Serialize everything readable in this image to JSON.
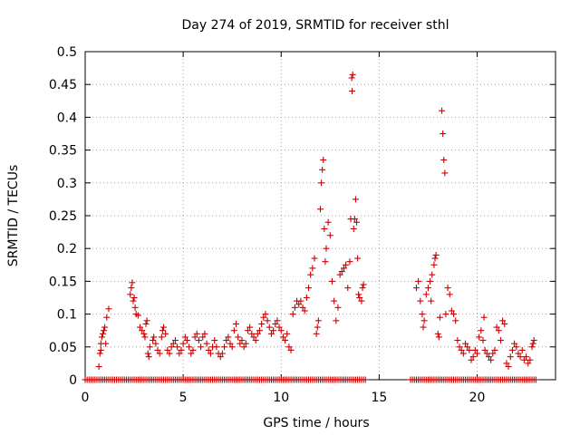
{
  "chart_data": {
    "type": "scatter",
    "title": "Day 274 of 2019, SRMTID for receiver sthl",
    "xlabel": "GPS time / hours",
    "ylabel": "SRMTID / TECUs",
    "xlim": [
      0,
      24
    ],
    "ylim": [
      0,
      0.5
    ],
    "xticks": [
      0,
      5,
      10,
      15,
      20
    ],
    "xtick_labels": [
      "0",
      "5",
      "10",
      "15",
      "20"
    ],
    "yticks": [
      0,
      0.05,
      0.1,
      0.15,
      0.2,
      0.25,
      0.3,
      0.35,
      0.4,
      0.45,
      0.5
    ],
    "ytick_labels": [
      "0",
      "0.05",
      "0.1",
      "0.15",
      "0.2",
      "0.25",
      "0.3",
      "0.35",
      "0.4",
      "0.45",
      "0.5"
    ],
    "grid": true,
    "marker": "+",
    "color": "#cc0000",
    "series": [
      {
        "name": "SRMTID",
        "points": [
          [
            0.7,
            0.02
          ],
          [
            0.75,
            0.04
          ],
          [
            0.8,
            0.055
          ],
          [
            0.85,
            0.065
          ],
          [
            0.9,
            0.07
          ],
          [
            0.95,
            0.075
          ],
          [
            1.0,
            0.08
          ],
          [
            1.1,
            0.095
          ],
          [
            1.2,
            0.108
          ],
          [
            1.05,
            0.055
          ],
          [
            0.8,
            0.045
          ],
          [
            2.3,
            0.13
          ],
          [
            2.35,
            0.14
          ],
          [
            2.4,
            0.148
          ],
          [
            2.45,
            0.12
          ],
          [
            2.5,
            0.125
          ],
          [
            2.55,
            0.11
          ],
          [
            2.6,
            0.1
          ],
          [
            2.7,
            0.098
          ],
          [
            2.8,
            0.08
          ],
          [
            2.9,
            0.075
          ],
          [
            3.0,
            0.07
          ],
          [
            3.05,
            0.065
          ],
          [
            3.1,
            0.085
          ],
          [
            3.15,
            0.09
          ],
          [
            3.2,
            0.04
          ],
          [
            3.25,
            0.035
          ],
          [
            3.3,
            0.05
          ],
          [
            3.45,
            0.06
          ],
          [
            3.5,
            0.065
          ],
          [
            3.6,
            0.055
          ],
          [
            3.7,
            0.045
          ],
          [
            3.8,
            0.04
          ],
          [
            3.9,
            0.065
          ],
          [
            3.95,
            0.075
          ],
          [
            4.0,
            0.08
          ],
          [
            4.1,
            0.07
          ],
          [
            4.2,
            0.045
          ],
          [
            4.3,
            0.04
          ],
          [
            4.4,
            0.05
          ],
          [
            4.5,
            0.055
          ],
          [
            4.6,
            0.06
          ],
          [
            4.7,
            0.05
          ],
          [
            4.8,
            0.04
          ],
          [
            4.9,
            0.045
          ],
          [
            5.0,
            0.055
          ],
          [
            5.1,
            0.065
          ],
          [
            5.2,
            0.06
          ],
          [
            5.3,
            0.05
          ],
          [
            5.4,
            0.04
          ],
          [
            5.5,
            0.045
          ],
          [
            5.6,
            0.065
          ],
          [
            5.7,
            0.07
          ],
          [
            5.8,
            0.06
          ],
          [
            5.9,
            0.05
          ],
          [
            6.0,
            0.065
          ],
          [
            6.1,
            0.07
          ],
          [
            6.2,
            0.055
          ],
          [
            6.3,
            0.045
          ],
          [
            6.4,
            0.04
          ],
          [
            6.5,
            0.05
          ],
          [
            6.6,
            0.06
          ],
          [
            6.7,
            0.05
          ],
          [
            6.8,
            0.04
          ],
          [
            6.9,
            0.035
          ],
          [
            7.0,
            0.04
          ],
          [
            7.1,
            0.05
          ],
          [
            7.2,
            0.06
          ],
          [
            7.3,
            0.065
          ],
          [
            7.4,
            0.055
          ],
          [
            7.5,
            0.05
          ],
          [
            7.6,
            0.075
          ],
          [
            7.7,
            0.085
          ],
          [
            7.8,
            0.065
          ],
          [
            7.9,
            0.055
          ],
          [
            8.0,
            0.06
          ],
          [
            8.1,
            0.05
          ],
          [
            8.2,
            0.055
          ],
          [
            8.3,
            0.075
          ],
          [
            8.4,
            0.08
          ],
          [
            8.5,
            0.07
          ],
          [
            8.6,
            0.065
          ],
          [
            8.7,
            0.06
          ],
          [
            8.8,
            0.07
          ],
          [
            8.9,
            0.075
          ],
          [
            9.0,
            0.085
          ],
          [
            9.1,
            0.095
          ],
          [
            9.2,
            0.1
          ],
          [
            9.3,
            0.09
          ],
          [
            9.4,
            0.08
          ],
          [
            9.5,
            0.07
          ],
          [
            9.6,
            0.075
          ],
          [
            9.7,
            0.085
          ],
          [
            9.8,
            0.09
          ],
          [
            9.9,
            0.08
          ],
          [
            10.0,
            0.075
          ],
          [
            10.1,
            0.065
          ],
          [
            10.2,
            0.06
          ],
          [
            10.3,
            0.07
          ],
          [
            10.4,
            0.05
          ],
          [
            10.5,
            0.045
          ],
          [
            10.6,
            0.1
          ],
          [
            10.7,
            0.11
          ],
          [
            10.8,
            0.12
          ],
          [
            10.9,
            0.115
          ],
          [
            11.0,
            0.12
          ],
          [
            11.1,
            0.11
          ],
          [
            11.2,
            0.105
          ],
          [
            11.3,
            0.125
          ],
          [
            11.4,
            0.14
          ],
          [
            11.5,
            0.16
          ],
          [
            11.6,
            0.17
          ],
          [
            11.7,
            0.185
          ],
          [
            11.8,
            0.07
          ],
          [
            11.85,
            0.08
          ],
          [
            11.9,
            0.09
          ],
          [
            12.0,
            0.26
          ],
          [
            12.05,
            0.3
          ],
          [
            12.1,
            0.32
          ],
          [
            12.15,
            0.335
          ],
          [
            12.2,
            0.23
          ],
          [
            12.25,
            0.18
          ],
          [
            12.3,
            0.2
          ],
          [
            12.4,
            0.24
          ],
          [
            12.5,
            0.22
          ],
          [
            12.6,
            0.15
          ],
          [
            12.7,
            0.12
          ],
          [
            12.8,
            0.09
          ],
          [
            12.9,
            0.11
          ],
          [
            13.0,
            0.16
          ],
          [
            13.1,
            0.165
          ],
          [
            13.2,
            0.17
          ],
          [
            13.3,
            0.175
          ],
          [
            13.4,
            0.14
          ],
          [
            13.5,
            0.18
          ],
          [
            13.55,
            0.245
          ],
          [
            13.6,
            0.46
          ],
          [
            13.62,
            0.44
          ],
          [
            13.65,
            0.465
          ],
          [
            13.7,
            0.23
          ],
          [
            13.75,
            0.245
          ],
          [
            13.8,
            0.275
          ],
          [
            13.85,
            0.24
          ],
          [
            13.9,
            0.185
          ],
          [
            13.95,
            0.13
          ],
          [
            14.0,
            0.125
          ],
          [
            14.1,
            0.12
          ],
          [
            14.15,
            0.14
          ],
          [
            14.2,
            0.145
          ],
          [
            16.9,
            0.14
          ],
          [
            17.0,
            0.15
          ],
          [
            17.1,
            0.12
          ],
          [
            17.2,
            0.1
          ],
          [
            17.25,
            0.08
          ],
          [
            17.3,
            0.09
          ],
          [
            17.4,
            0.13
          ],
          [
            17.5,
            0.14
          ],
          [
            17.6,
            0.15
          ],
          [
            17.65,
            0.12
          ],
          [
            17.7,
            0.16
          ],
          [
            17.8,
            0.175
          ],
          [
            17.85,
            0.185
          ],
          [
            17.9,
            0.19
          ],
          [
            18.0,
            0.07
          ],
          [
            18.05,
            0.065
          ],
          [
            18.1,
            0.095
          ],
          [
            18.2,
            0.41
          ],
          [
            18.25,
            0.375
          ],
          [
            18.3,
            0.335
          ],
          [
            18.35,
            0.315
          ],
          [
            18.4,
            0.1
          ],
          [
            18.5,
            0.14
          ],
          [
            18.6,
            0.13
          ],
          [
            18.7,
            0.105
          ],
          [
            18.8,
            0.1
          ],
          [
            18.9,
            0.09
          ],
          [
            19.0,
            0.06
          ],
          [
            19.1,
            0.05
          ],
          [
            19.2,
            0.045
          ],
          [
            19.3,
            0.04
          ],
          [
            19.4,
            0.055
          ],
          [
            19.5,
            0.05
          ],
          [
            19.6,
            0.045
          ],
          [
            19.7,
            0.03
          ],
          [
            19.8,
            0.035
          ],
          [
            19.9,
            0.045
          ],
          [
            20.0,
            0.04
          ],
          [
            20.1,
            0.065
          ],
          [
            20.2,
            0.075
          ],
          [
            20.3,
            0.06
          ],
          [
            20.35,
            0.095
          ],
          [
            20.4,
            0.045
          ],
          [
            20.5,
            0.04
          ],
          [
            20.6,
            0.035
          ],
          [
            20.7,
            0.03
          ],
          [
            20.8,
            0.04
          ],
          [
            20.9,
            0.045
          ],
          [
            21.0,
            0.08
          ],
          [
            21.1,
            0.075
          ],
          [
            21.2,
            0.06
          ],
          [
            21.3,
            0.09
          ],
          [
            21.4,
            0.085
          ],
          [
            21.5,
            0.025
          ],
          [
            21.6,
            0.02
          ],
          [
            21.7,
            0.035
          ],
          [
            21.8,
            0.045
          ],
          [
            21.9,
            0.055
          ],
          [
            22.0,
            0.05
          ],
          [
            22.1,
            0.04
          ],
          [
            22.2,
            0.035
          ],
          [
            22.3,
            0.045
          ],
          [
            22.4,
            0.03
          ],
          [
            22.5,
            0.035
          ],
          [
            22.6,
            0.025
          ],
          [
            22.7,
            0.03
          ],
          [
            22.8,
            0.05
          ],
          [
            22.85,
            0.055
          ],
          [
            22.9,
            0.06
          ]
        ]
      }
    ],
    "zero_bands": [
      [
        0.0,
        14.3
      ],
      [
        16.6,
        23.0
      ]
    ]
  }
}
